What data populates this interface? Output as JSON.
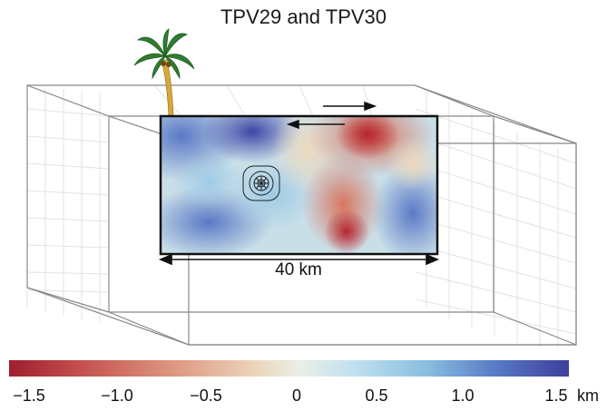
{
  "title": "TPV29 and TPV30",
  "fault_length_label": "40 km",
  "colorbar": {
    "ticks": [
      "−1.5",
      "−1.0",
      "−0.5",
      "0",
      "0.5",
      "1.0",
      "1.5"
    ],
    "unit": "km",
    "colors": [
      "#9e1e2e",
      "#c4514f",
      "#df9a83",
      "#ecd9bf",
      "#e9efe8",
      "#bfe0ee",
      "#86bddf",
      "#5574c2",
      "#3e3f9c"
    ]
  },
  "icons": [
    "palm-tree-icon",
    "hypocenter-icon",
    "slip-arrow-icon"
  ]
}
